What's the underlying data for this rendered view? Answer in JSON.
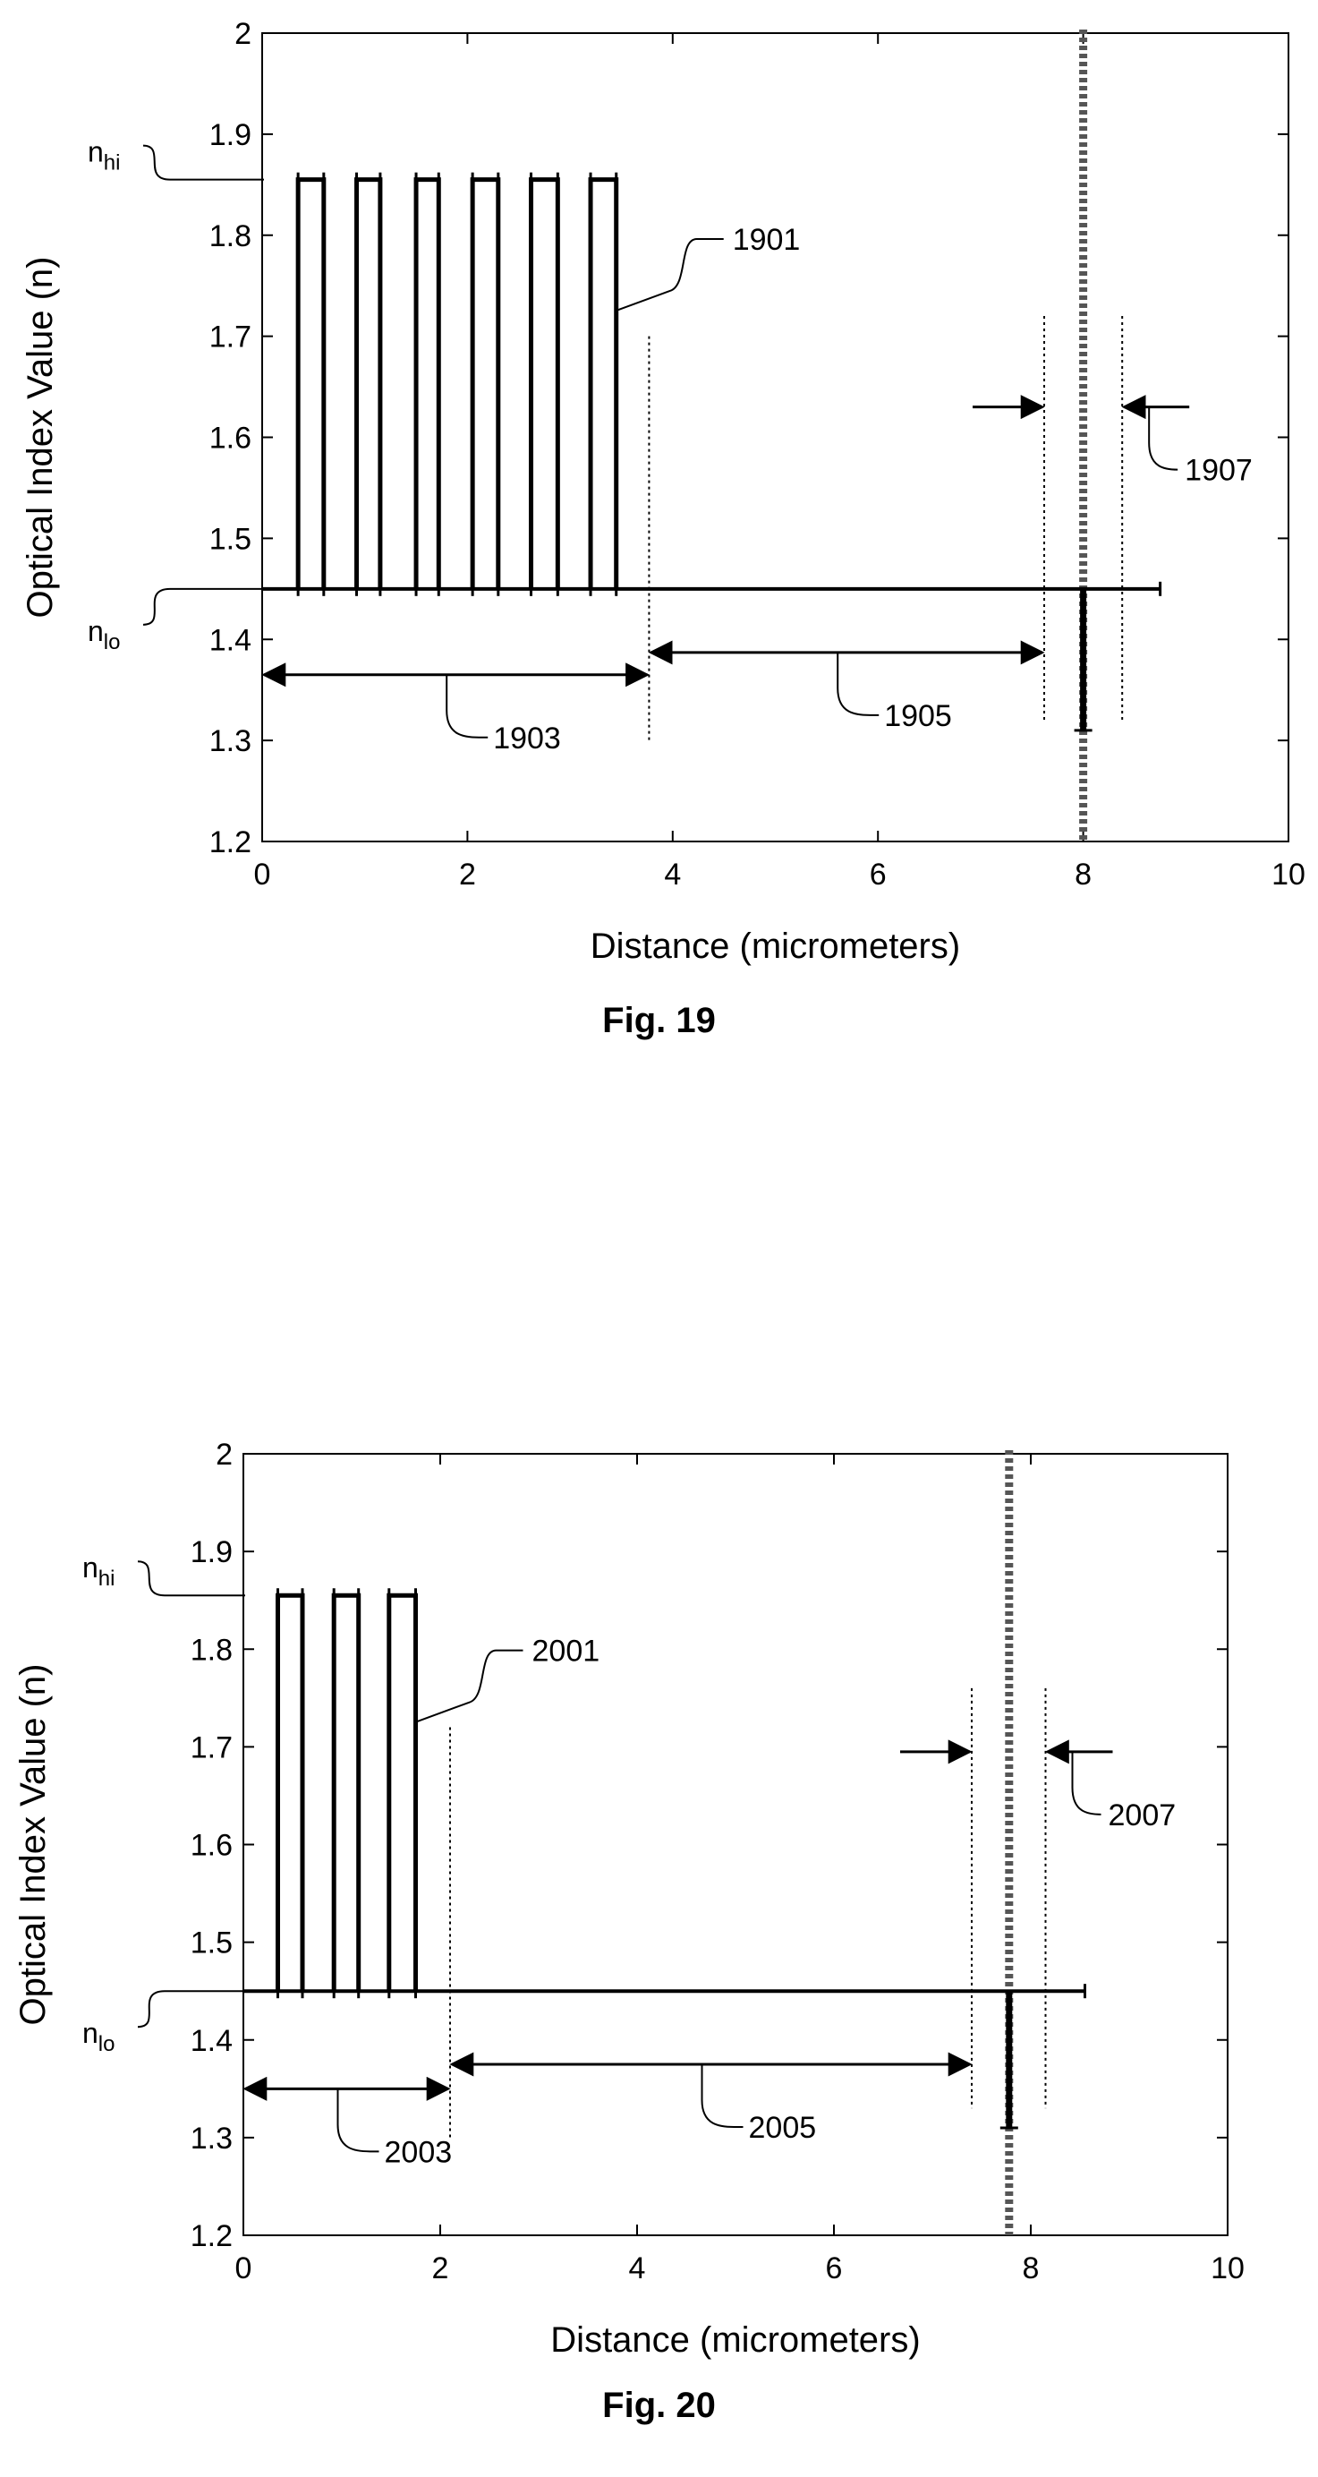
{
  "figures": [
    {
      "caption": "Fig. 19",
      "chart_data": {
        "type": "line",
        "xlabel": "Distance (micrometers)",
        "ylabel": "Optical Index Value (n)",
        "xlim": [
          0,
          10
        ],
        "ylim": [
          1.2,
          2.0
        ],
        "xticks": [
          "0",
          "2",
          "4",
          "6",
          "8",
          "10"
        ],
        "yticks": [
          "1.2",
          "1.3",
          "1.4",
          "1.5",
          "1.6",
          "1.7",
          "1.8",
          "1.9",
          "2"
        ],
        "n_hi": 1.855,
        "n_lo": 1.45,
        "n_hi_label": "n",
        "n_hi_sub": "hi",
        "n_lo_label": "n",
        "n_lo_sub": "lo",
        "baseline": {
          "x_start": 0.0,
          "x_end": 8.75
        },
        "pulses": [
          {
            "x_start": 0.35,
            "x_end": 0.6
          },
          {
            "x_start": 0.92,
            "x_end": 1.15
          },
          {
            "x_start": 1.5,
            "x_end": 1.72
          },
          {
            "x_start": 2.05,
            "x_end": 2.3
          },
          {
            "x_start": 2.62,
            "x_end": 2.88
          },
          {
            "x_start": 3.2,
            "x_end": 3.45
          }
        ],
        "dip": {
          "x": 8.0,
          "y_min": 1.31
        },
        "dashed_line_x": 8.0,
        "dotted_lines": [
          {
            "x": 3.77,
            "y_top": 1.7,
            "y_bottom": 1.3
          },
          {
            "x": 7.62,
            "y_top": 1.72,
            "y_bottom": 1.32
          },
          {
            "x": 8.38,
            "y_top": 1.72,
            "y_bottom": 1.32
          }
        ],
        "annotations": [
          {
            "label": "1901",
            "type": "curve-label"
          },
          {
            "label": "1903",
            "type": "span",
            "x_start": 0.0,
            "x_end": 3.77,
            "y": 1.365
          },
          {
            "label": "1905",
            "type": "span",
            "x_start": 3.77,
            "x_end": 7.62,
            "y": 1.387
          },
          {
            "label": "1907",
            "type": "gap",
            "x_start": 7.62,
            "x_end": 8.38,
            "y": 1.63
          }
        ]
      }
    },
    {
      "caption": "Fig. 20",
      "chart_data": {
        "type": "line",
        "xlabel": "Distance (micrometers)",
        "ylabel": "Optical Index Value (n)",
        "xlim": [
          0,
          10
        ],
        "ylim": [
          1.2,
          2.0
        ],
        "xticks": [
          "0",
          "2",
          "4",
          "6",
          "8",
          "10"
        ],
        "yticks": [
          "1.2",
          "1.3",
          "1.4",
          "1.5",
          "1.6",
          "1.7",
          "1.8",
          "1.9",
          "2"
        ],
        "n_hi": 1.855,
        "n_lo": 1.45,
        "n_hi_label": "n",
        "n_hi_sub": "hi",
        "n_lo_label": "n",
        "n_lo_sub": "lo",
        "baseline": {
          "x_start": 0.0,
          "x_end": 8.55
        },
        "pulses": [
          {
            "x_start": 0.35,
            "x_end": 0.6
          },
          {
            "x_start": 0.92,
            "x_end": 1.17
          },
          {
            "x_start": 1.48,
            "x_end": 1.75
          }
        ],
        "dip": {
          "x": 7.78,
          "y_min": 1.31
        },
        "dashed_line_x": 7.78,
        "dotted_lines": [
          {
            "x": 2.1,
            "y_top": 1.72,
            "y_bottom": 1.3
          },
          {
            "x": 7.4,
            "y_top": 1.76,
            "y_bottom": 1.33
          },
          {
            "x": 8.15,
            "y_top": 1.76,
            "y_bottom": 1.33
          }
        ],
        "annotations": [
          {
            "label": "2001",
            "type": "curve-label"
          },
          {
            "label": "2003",
            "type": "span",
            "x_start": 0.0,
            "x_end": 2.1,
            "y": 1.35
          },
          {
            "label": "2005",
            "type": "span",
            "x_start": 2.1,
            "x_end": 7.4,
            "y": 1.375
          },
          {
            "label": "2007",
            "type": "gap",
            "x_start": 7.4,
            "x_end": 8.15,
            "y": 1.695
          }
        ]
      }
    }
  ]
}
